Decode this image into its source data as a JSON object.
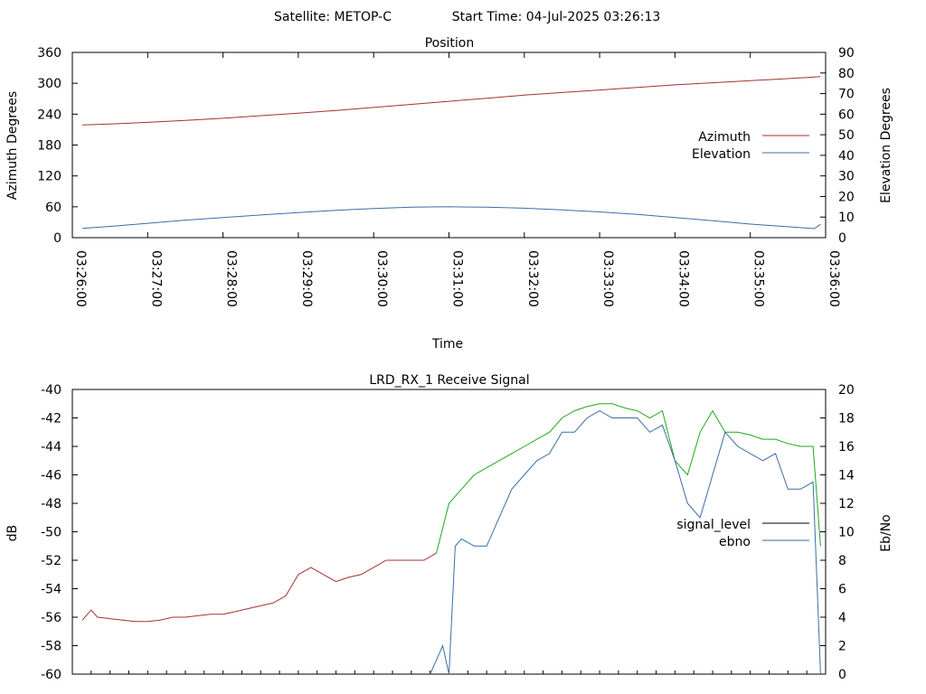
{
  "header": {
    "satellite_label": "Satellite: METOP-C",
    "start_time_label": "Start Time: 04-Jul-2025 03:26:13"
  },
  "chart_data": [
    {
      "type": "line",
      "title": "Position",
      "xlabel": "Time",
      "ylabel": "Azimuth Degrees",
      "y2label": "Elevation Degrees",
      "x_ticks": [
        "03:26:00",
        "03:27:00",
        "03:28:00",
        "03:29:00",
        "03:30:00",
        "03:31:00",
        "03:32:00",
        "03:33:00",
        "03:34:00",
        "03:35:00",
        "03:36:00"
      ],
      "x_range": [
        "03:26:00",
        "03:36:00"
      ],
      "ylim": [
        0,
        360
      ],
      "y_ticks": [
        0,
        60,
        120,
        180,
        240,
        300,
        360
      ],
      "y2lim": [
        0,
        90
      ],
      "y2_ticks": [
        0,
        10,
        20,
        30,
        40,
        50,
        60,
        70,
        80,
        90
      ],
      "legend_position": "right",
      "colors": {
        "azimuth": "#a03232",
        "elevation": "#3a6ea5"
      },
      "series": [
        {
          "name": "Azimuth",
          "axis": "left",
          "x": [
            "03:26:08",
            "03:26:30",
            "03:27:00",
            "03:27:30",
            "03:28:00",
            "03:28:30",
            "03:29:00",
            "03:29:30",
            "03:30:00",
            "03:30:30",
            "03:31:00",
            "03:31:30",
            "03:32:00",
            "03:32:30",
            "03:33:00",
            "03:33:30",
            "03:34:00",
            "03:34:30",
            "03:35:00",
            "03:35:30",
            "03:35:51",
            "03:35:56"
          ],
          "values": [
            219,
            221,
            224,
            228,
            232,
            237,
            242,
            247,
            253,
            259,
            265,
            271,
            277,
            282,
            287,
            292,
            297,
            301,
            305,
            309,
            312,
            313
          ]
        },
        {
          "name": "Elevation",
          "axis": "right",
          "x": [
            "03:26:08",
            "03:26:30",
            "03:27:00",
            "03:27:30",
            "03:28:00",
            "03:28:30",
            "03:29:00",
            "03:29:30",
            "03:30:00",
            "03:30:30",
            "03:31:00",
            "03:31:30",
            "03:32:00",
            "03:32:30",
            "03:33:00",
            "03:33:30",
            "03:34:00",
            "03:34:30",
            "03:35:00",
            "03:35:30",
            "03:35:51",
            "03:35:56"
          ],
          "values": [
            4.5,
            5.5,
            7,
            8.5,
            9.8,
            11,
            12.2,
            13.3,
            14.2,
            14.8,
            15,
            14.8,
            14.3,
            13.5,
            12.5,
            11.3,
            9.8,
            8.2,
            6.6,
            5.3,
            4.4,
            6.5
          ]
        }
      ]
    },
    {
      "type": "line",
      "title": "LRD_RX_1 Receive Signal",
      "ylabel": "dB",
      "y2label": "Eb/No",
      "x_range": [
        "03:26:00",
        "03:36:00"
      ],
      "ylim": [
        -60,
        -40
      ],
      "y_ticks": [
        -60,
        -58,
        -56,
        -54,
        -52,
        -50,
        -48,
        -46,
        -44,
        -42,
        -40
      ],
      "y2lim": [
        0,
        20
      ],
      "y2_ticks": [
        0,
        2,
        4,
        6,
        8,
        10,
        12,
        14,
        16,
        18,
        20
      ],
      "legend_position": "right",
      "colors": {
        "signal_level": "#000000",
        "ebno": "#3a6ea5",
        "low_signal": "#a03232",
        "high_signal": "#1fa81f"
      },
      "series": [
        {
          "name": "signal_level",
          "axis": "left",
          "x_seconds_from_0326": [
            8,
            15,
            20,
            30,
            40,
            50,
            60,
            70,
            80,
            90,
            100,
            110,
            120,
            130,
            140,
            150,
            160,
            170,
            180,
            190,
            200,
            210,
            220,
            230,
            240,
            250,
            260,
            270,
            280,
            290,
            300,
            310,
            320,
            330,
            340,
            350,
            360,
            370,
            380,
            390,
            400,
            410,
            420,
            430,
            440,
            450,
            460,
            470,
            480,
            490,
            500,
            510,
            520,
            530,
            540,
            550,
            560,
            570,
            580,
            590,
            596
          ],
          "values": [
            -56.2,
            -55.5,
            -56,
            -56.1,
            -56.2,
            -56.3,
            -56.3,
            -56.2,
            -56,
            -56,
            -55.9,
            -55.8,
            -55.8,
            -55.6,
            -55.4,
            -55.2,
            -55,
            -54.5,
            -53,
            -52.5,
            -53,
            -53.5,
            -53.2,
            -53,
            -52.5,
            -52,
            -52,
            -52,
            -52,
            -51.5,
            -48,
            -47,
            -46,
            -45.5,
            -45,
            -44.5,
            -44,
            -43.5,
            -43,
            -42,
            -41.5,
            -41.2,
            -41,
            -41,
            -41.3,
            -41.5,
            -42,
            -41.5,
            -45,
            -46,
            -43,
            -41.5,
            -43,
            -43,
            -43.2,
            -43.5,
            -43.5,
            -43.8,
            -44,
            -44,
            -51
          ]
        },
        {
          "name": "ebno",
          "axis": "right",
          "x_seconds_from_0326": [
            285,
            290,
            295,
            300,
            305,
            310,
            320,
            330,
            340,
            350,
            360,
            370,
            380,
            390,
            400,
            410,
            420,
            430,
            440,
            450,
            460,
            470,
            480,
            490,
            500,
            510,
            520,
            530,
            540,
            550,
            560,
            570,
            580,
            590,
            596
          ],
          "values": [
            0,
            1,
            2,
            0,
            9,
            9.5,
            9,
            9,
            11,
            13,
            14,
            15,
            15.5,
            17,
            17,
            18,
            18.5,
            18,
            18,
            18,
            17,
            17.5,
            15,
            12,
            11,
            14,
            17,
            16,
            15.5,
            15,
            15.5,
            13,
            13,
            13.5,
            0
          ]
        }
      ]
    }
  ]
}
